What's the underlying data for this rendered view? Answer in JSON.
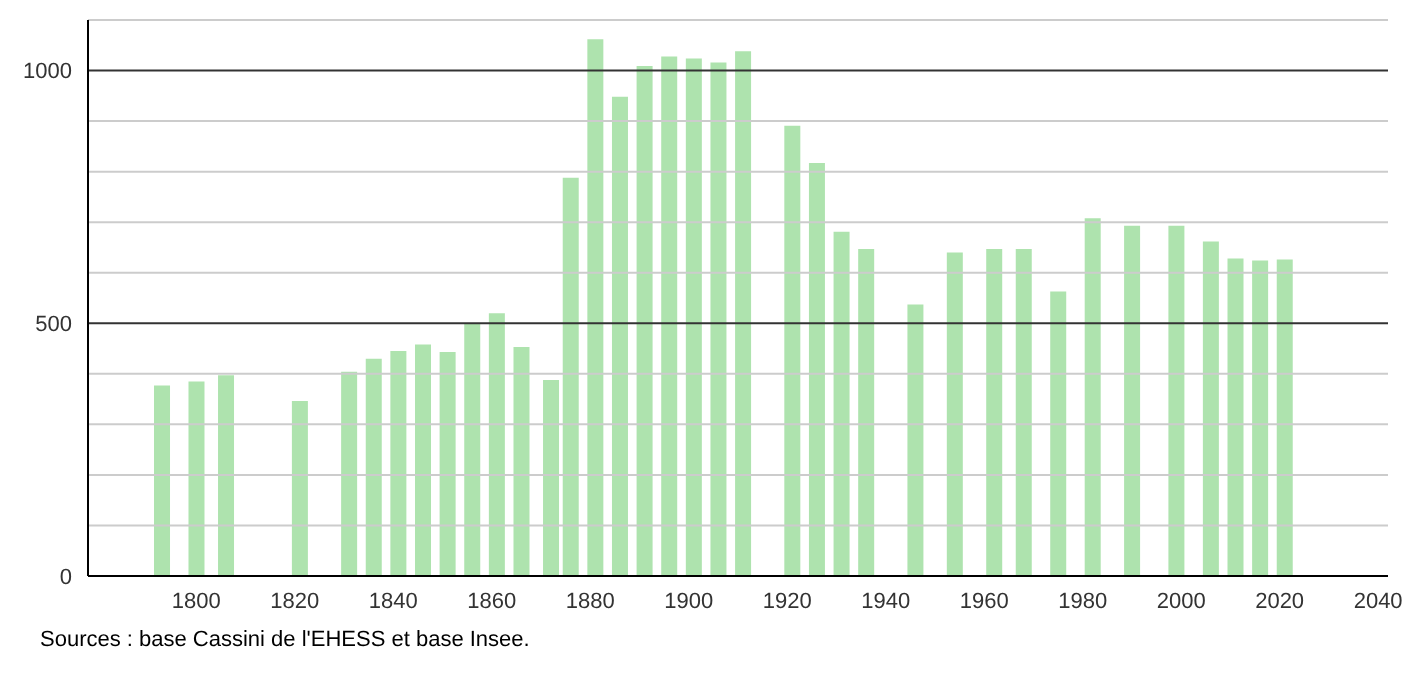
{
  "chart_data": {
    "type": "bar",
    "x": [
      1793,
      1800,
      1806,
      1821,
      1831,
      1836,
      1841,
      1846,
      1851,
      1856,
      1861,
      1866,
      1872,
      1876,
      1881,
      1886,
      1891,
      1896,
      1901,
      1906,
      1911,
      1921,
      1926,
      1931,
      1936,
      1946,
      1954,
      1962,
      1968,
      1975,
      1982,
      1990,
      1999,
      2006,
      2011,
      2016,
      2021
    ],
    "values": [
      377,
      385,
      397,
      346,
      404,
      430,
      445,
      458,
      443,
      499,
      520,
      453,
      388,
      788,
      1062,
      948,
      1009,
      1028,
      1024,
      1016,
      1038,
      891,
      817,
      681,
      647,
      537,
      640,
      647,
      647,
      563,
      708,
      693,
      693,
      662,
      628,
      624,
      626
    ],
    "color": "#aee3ae",
    "xlim": [
      1778,
      2042
    ],
    "xticks": [
      1800,
      1820,
      1840,
      1860,
      1880,
      1900,
      1920,
      1940,
      1960,
      1980,
      2000,
      2020,
      2040
    ],
    "ylim": [
      0,
      1100
    ],
    "yticks": [
      0,
      {
        "value": 100,
        "label": null
      },
      {
        "value": 200,
        "label": null
      },
      {
        "value": 300,
        "label": null
      },
      {
        "value": 400,
        "label": null
      },
      500,
      {
        "value": 600,
        "label": null
      },
      {
        "value": 700,
        "label": null
      },
      {
        "value": 800,
        "label": null
      },
      {
        "value": 900,
        "label": null
      },
      1000,
      {
        "value": 1100,
        "label": null
      }
    ],
    "grid": "y",
    "annotations": [
      "Sources : base Cassini de l'EHESS et base Insee."
    ]
  }
}
